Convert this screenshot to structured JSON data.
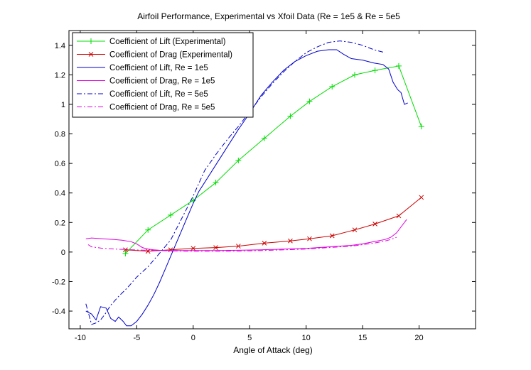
{
  "chart_data": {
    "type": "line",
    "title": "Airfoil Performance, Experimental vs Xfoil Data (Re = 1e5 & Re = 5e5",
    "xlabel": "Angle of Attack (deg)",
    "ylabel": "",
    "xlim": [
      -11,
      25
    ],
    "ylim": [
      -0.52,
      1.5
    ],
    "xticks": [
      -10,
      -5,
      0,
      5,
      10,
      15,
      20
    ],
    "xtick_labels": [
      "-10",
      "-5",
      "0",
      "5",
      "10",
      "15",
      "20"
    ],
    "yticks": [
      -0.4,
      -0.2,
      0,
      0.2,
      0.4,
      0.6,
      0.8,
      1,
      1.2,
      1.4
    ],
    "ytick_labels": [
      "-0.4",
      "-0.2",
      "0",
      "0.2",
      "0.4",
      "0.6",
      "0.8",
      "1",
      "1.2",
      "1.4"
    ],
    "grid": false,
    "legend_position": "top-left",
    "series": [
      {
        "name": "Coefficient of Lift (Experimental)",
        "color": "#00dd00",
        "dash": "solid",
        "marker": "plus",
        "x": [
          -6,
          -4,
          -2,
          0,
          2,
          4,
          6.3,
          8.6,
          10.3,
          12.3,
          14.3,
          16.1,
          18.2,
          20.2
        ],
        "y": [
          -0.01,
          0.15,
          0.25,
          0.35,
          0.47,
          0.62,
          0.77,
          0.92,
          1.02,
          1.12,
          1.2,
          1.23,
          1.26,
          0.85
        ]
      },
      {
        "name": "Coefficient of Drag (Experimental)",
        "color": "#cc0000",
        "dash": "solid",
        "marker": "x",
        "x": [
          -6,
          -4,
          -2,
          0,
          2,
          4,
          6.3,
          8.6,
          10.3,
          12.3,
          14.3,
          16.1,
          18.2,
          20.2
        ],
        "y": [
          0.015,
          0.005,
          0.015,
          0.025,
          0.03,
          0.04,
          0.06,
          0.075,
          0.09,
          0.11,
          0.15,
          0.19,
          0.245,
          0.37
        ]
      },
      {
        "name": "Coefficient of Lift, Re = 1e5",
        "color": "#0000cc",
        "dash": "solid",
        "marker": "none",
        "x": [
          -9.5,
          -9,
          -8.6,
          -8.2,
          -7.7,
          -7.3,
          -6.9,
          -6.6,
          -6.2,
          -5.9,
          -5.5,
          -5,
          -4.5,
          -4,
          -3.5,
          -3,
          -2.5,
          -2,
          -1.5,
          -1,
          -0.5,
          0,
          0.5,
          1,
          2,
          3,
          4,
          5,
          6,
          7,
          8,
          9,
          10,
          11,
          12,
          12.7,
          13.3,
          14,
          15,
          16,
          16.8,
          17.3,
          17.7,
          18.1,
          18.4,
          18.7,
          19
        ],
        "y": [
          -0.4,
          -0.42,
          -0.46,
          -0.37,
          -0.38,
          -0.45,
          -0.47,
          -0.44,
          -0.47,
          -0.5,
          -0.5,
          -0.47,
          -0.42,
          -0.36,
          -0.29,
          -0.21,
          -0.12,
          -0.03,
          0.06,
          0.15,
          0.24,
          0.33,
          0.41,
          0.47,
          0.59,
          0.71,
          0.83,
          0.94,
          1.06,
          1.15,
          1.23,
          1.29,
          1.33,
          1.36,
          1.37,
          1.37,
          1.34,
          1.31,
          1.3,
          1.28,
          1.27,
          1.24,
          1.15,
          1.1,
          1.08,
          1,
          1.01
        ]
      },
      {
        "name": "Coefficient of Drag, Re = 1e5",
        "color": "#dd00dd",
        "dash": "solid",
        "marker": "none",
        "x": [
          -9.5,
          -9,
          -8,
          -7,
          -6.3,
          -5.5,
          -5,
          -4.5,
          -4,
          -3.5,
          -3,
          -2,
          -1,
          0,
          2,
          4,
          6,
          8,
          10,
          12,
          14,
          15,
          16,
          17,
          17.5,
          18,
          18.5,
          18.9
        ],
        "y": [
          0.09,
          0.095,
          0.09,
          0.085,
          0.08,
          0.07,
          0.055,
          0.03,
          0.02,
          0.015,
          0.012,
          0.01,
          0.01,
          0.01,
          0.01,
          0.012,
          0.015,
          0.02,
          0.025,
          0.035,
          0.045,
          0.055,
          0.07,
          0.085,
          0.1,
          0.13,
          0.18,
          0.22
        ]
      },
      {
        "name": "Coefficient of Lift, Re = 5e5",
        "color": "#0000cc",
        "dash": "dashdot",
        "marker": "none",
        "x": [
          -9.5,
          -9,
          -8.6,
          -8.2,
          -7.8,
          -7.3,
          -6.6,
          -5.8,
          -5,
          -4,
          -3,
          -2,
          -1,
          0,
          1,
          2,
          3,
          4,
          5,
          6,
          7,
          8,
          9,
          10,
          11,
          12,
          13,
          14,
          15,
          16,
          17
        ],
        "y": [
          -0.35,
          -0.49,
          -0.48,
          -0.46,
          -0.42,
          -0.36,
          -0.3,
          -0.24,
          -0.17,
          -0.1,
          -0.01,
          0.08,
          0.23,
          0.38,
          0.55,
          0.66,
          0.76,
          0.85,
          0.95,
          1.05,
          1.14,
          1.22,
          1.29,
          1.35,
          1.39,
          1.42,
          1.43,
          1.42,
          1.4,
          1.37,
          1.35
        ]
      },
      {
        "name": "Coefficient of Drag, Re = 5e5",
        "color": "#dd00dd",
        "dash": "dashdot",
        "marker": "none",
        "x": [
          -9.3,
          -9,
          -8.5,
          -8,
          -7,
          -6,
          -5,
          -4,
          -3,
          -2,
          -1,
          0,
          2,
          4,
          6,
          8,
          10,
          12,
          14,
          15,
          16,
          17,
          17.5,
          18
        ],
        "y": [
          0.05,
          0.035,
          0.03,
          0.025,
          0.02,
          0.017,
          0.014,
          0.012,
          0.01,
          0.008,
          0.006,
          0.005,
          0.005,
          0.006,
          0.01,
          0.015,
          0.02,
          0.03,
          0.04,
          0.05,
          0.06,
          0.075,
          0.085,
          0.1
        ]
      }
    ]
  }
}
